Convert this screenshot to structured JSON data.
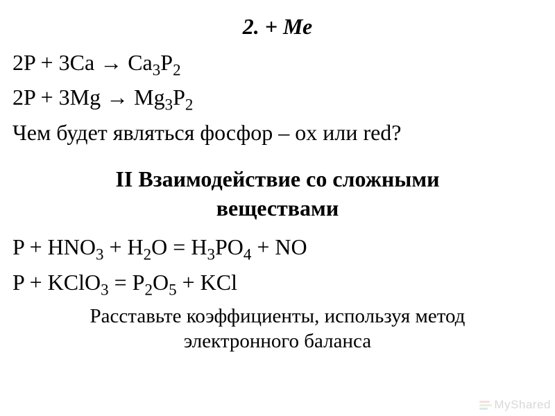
{
  "heading1": "2. + Ме",
  "eq1": {
    "prefix": "2P + 3Ca → Ca",
    "sub1": "3",
    "mid": "P",
    "sub2": "2"
  },
  "eq2": {
    "prefix": "2P + 3Mg → Mg",
    "sub1": "3",
    "mid": "P",
    "sub2": "2"
  },
  "question": "Чем будет являться фосфор – ox или red?",
  "heading2_line1": "II Взаимодействие со сложными",
  "heading2_line2": "веществами",
  "eq3": {
    "p1": "P + HNO",
    "s1": "3",
    "p2": " + H",
    "s2": "2",
    "p3": "O = H",
    "s3": "3",
    "p4": "PO",
    "s4": "4",
    "p5": " + NO"
  },
  "eq4": {
    "p1": "P + KClO",
    "s1": "3",
    "p2": " = P",
    "s2": "2",
    "p3": "O",
    "s3": "5",
    "p4": " + KCl"
  },
  "instruction_line1": "Расставьте коэффициенты, используя метод",
  "instruction_line2": "электронного баланса",
  "watermark": "МуShared",
  "colors": {
    "background": "#ffffff",
    "text": "#000000",
    "watermark": "#d8d8d8"
  },
  "fonts": {
    "body_family": "Times New Roman",
    "body_size": 32,
    "instruction_size": 29,
    "watermark_family": "Arial",
    "watermark_size": 17
  }
}
